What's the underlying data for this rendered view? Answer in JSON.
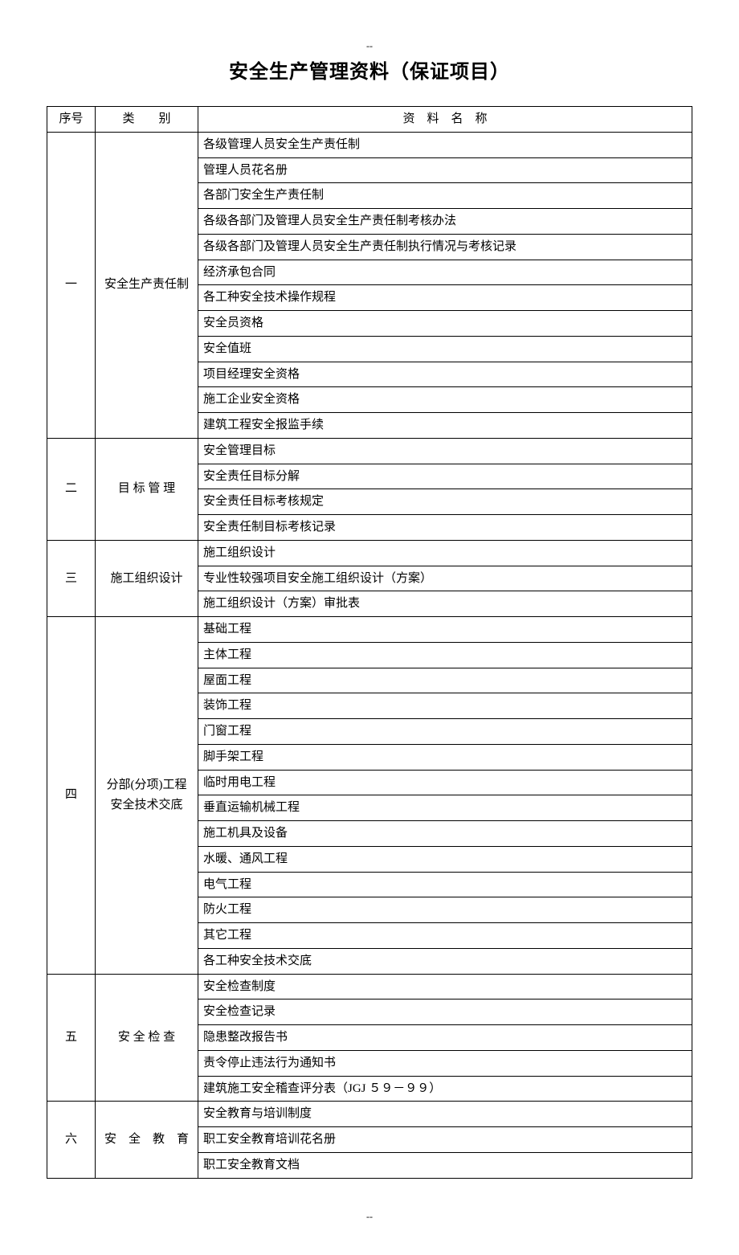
{
  "marks": {
    "top": "--",
    "bottom": "--"
  },
  "title": "安全生产管理资料（保证项目）",
  "headers": {
    "seq": "序号",
    "cat": "类　　别",
    "name": "资　料　名　称"
  },
  "rows": [
    {
      "seq": "一",
      "cat": "安全生产责任制",
      "items": [
        "各级管理人员安全生产责任制",
        "管理人员花名册",
        "各部门安全生产责任制",
        "各级各部门及管理人员安全生产责任制考核办法",
        "各级各部门及管理人员安全生产责任制执行情况与考核记录",
        "经济承包合同",
        "各工种安全技术操作规程",
        "安全员资格",
        "安全值班",
        "项目经理安全资格",
        "施工企业安全资格",
        "建筑工程安全报监手续"
      ]
    },
    {
      "seq": "二",
      "cat": "目 标 管 理",
      "items": [
        "安全管理目标",
        "安全责任目标分解",
        "安全责任目标考核规定",
        "安全责任制目标考核记录"
      ]
    },
    {
      "seq": "三",
      "cat": "施工组织设计",
      "items": [
        "施工组织设计",
        "专业性较强项目安全施工组织设计（方案）",
        "施工组织设计（方案）审批表"
      ]
    },
    {
      "seq": "四",
      "cat": "分部(分项)工程\n安全技术交底",
      "items": [
        "基础工程",
        "主体工程",
        "屋面工程",
        "装饰工程",
        "门窗工程",
        "脚手架工程",
        "临时用电工程",
        "垂直运输机械工程",
        "施工机具及设备",
        "水暖、通风工程",
        "电气工程",
        "防火工程",
        "其它工程",
        "各工种安全技术交底"
      ]
    },
    {
      "seq": "五",
      "cat": "安 全 检 查",
      "items": [
        "安全检查制度",
        "安全检查记录",
        "隐患整改报告书",
        "责令停止违法行为通知书",
        "建筑施工安全稽查评分表（JGJ ５９－９９）"
      ]
    },
    {
      "seq": "六",
      "cat": "安　全　教　育",
      "items": [
        "安全教育与培训制度",
        "职工安全教育培训花名册",
        "职工安全教育文档"
      ]
    }
  ]
}
